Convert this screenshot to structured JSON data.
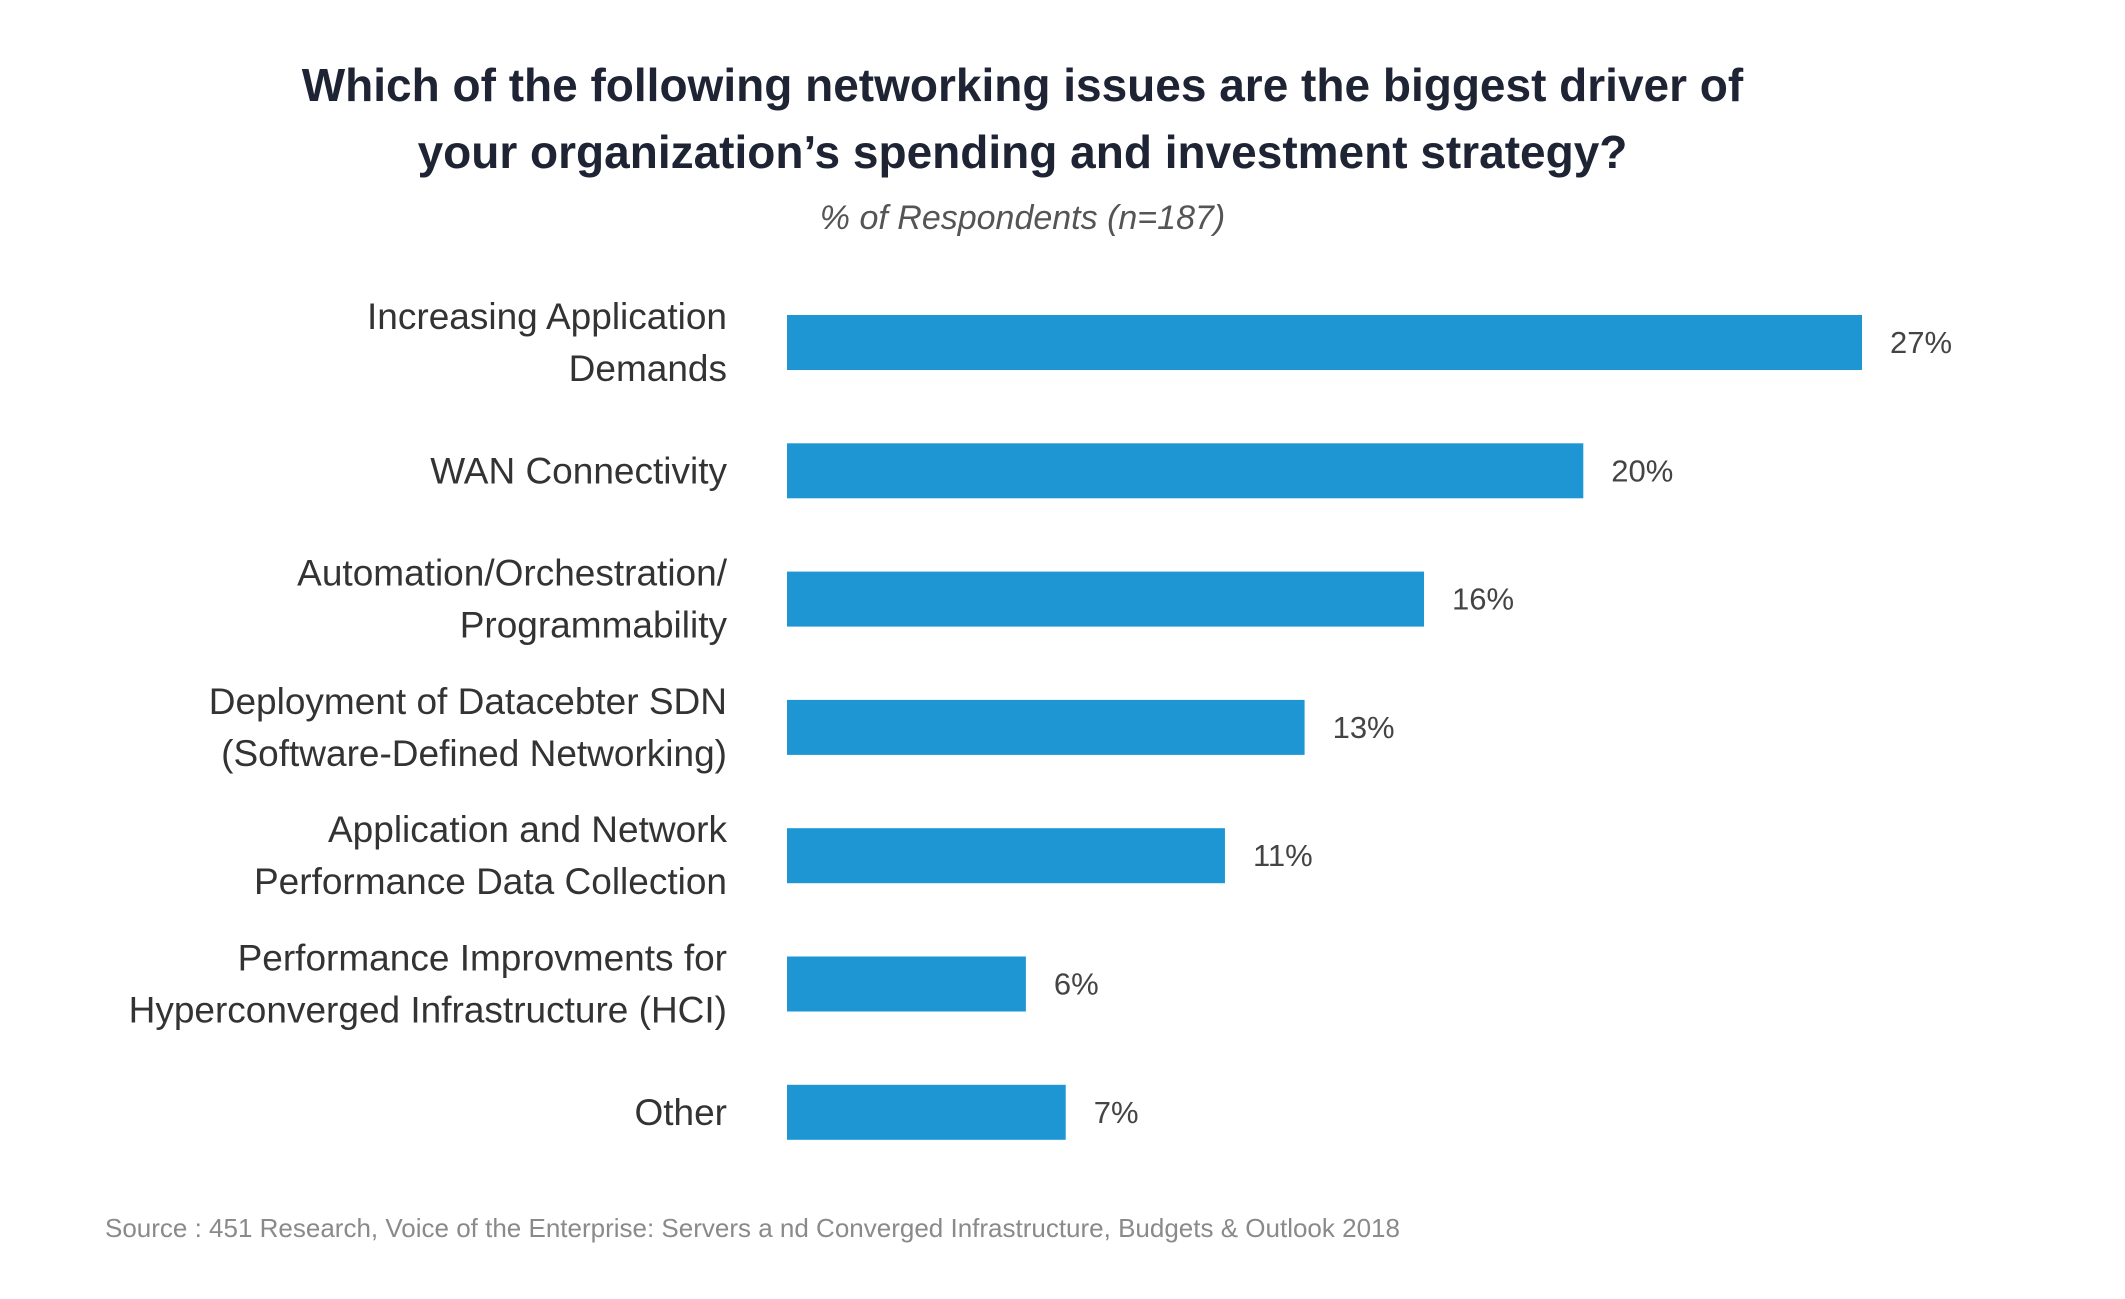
{
  "chart_data": {
    "type": "bar",
    "orientation": "horizontal",
    "title_lines": [
      "Which of the following networking issues are the biggest driver of",
      "your organization’s spending and investment strategy?"
    ],
    "subtitle": "% of Respondents (n=187)",
    "categories": [
      [
        "Increasing Application",
        "Demands"
      ],
      [
        "WAN Connectivity"
      ],
      [
        "Automation/Orchestration/",
        "Programmability"
      ],
      [
        "Deployment of Datacebter SDN",
        "(Software-Defined Networking)"
      ],
      [
        "Application and Network",
        "Performance Data Collection"
      ],
      [
        "Performance Improvments for",
        "Hyperconverged Infrastructure (HCI)"
      ],
      [
        "Other"
      ]
    ],
    "values": [
      27,
      20,
      16,
      13,
      11,
      6,
      7
    ],
    "value_labels": [
      "27%",
      "20%",
      "16%",
      "13%",
      "11%",
      "6%",
      "7%"
    ],
    "xlim": [
      0,
      27
    ],
    "grid": false,
    "legend": "none",
    "bar_color": "#1e96d3"
  },
  "source": "Source : 451 Research, Voice of the Enterprise: Servers a nd Converged Infrastructure, Budgets & Outlook 2018"
}
